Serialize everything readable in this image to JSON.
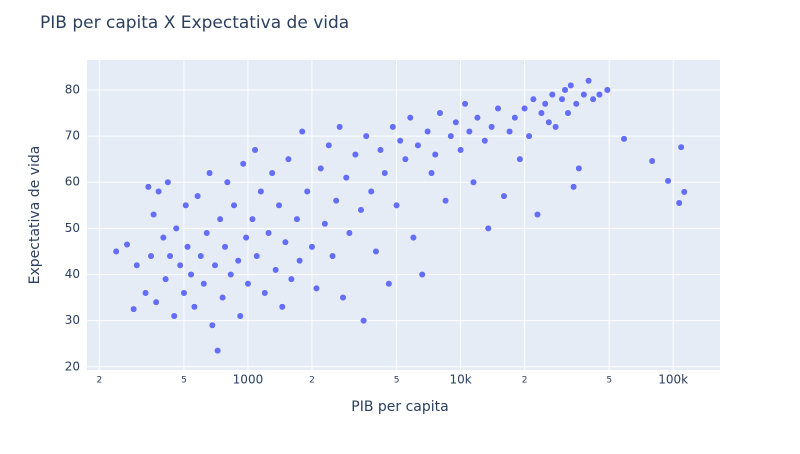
{
  "chart_data": {
    "type": "scatter",
    "title": "PIB per capita X Expectativa de vida",
    "x_label": "PIB per capita",
    "y_label": "Expectativa de vida",
    "x_log": true,
    "grid": true,
    "color": "#636efa",
    "xlim": [
      175,
      166000
    ],
    "ylim": [
      19.3,
      86.5
    ],
    "xticks": [
      {
        "value": 200,
        "label": "2"
      },
      {
        "value": 500,
        "label": "5"
      },
      1000,
      {
        "value": 2000,
        "label": "2"
      },
      {
        "value": 5000,
        "label": "5"
      },
      {
        "value": 10000,
        "label": "10k"
      },
      {
        "value": 20000,
        "label": "2"
      },
      {
        "value": 50000,
        "label": "5"
      },
      {
        "value": 100000,
        "label": "100k"
      }
    ],
    "yticks": [
      20,
      30,
      40,
      50,
      60,
      70,
      80
    ],
    "x": [
      240,
      270,
      290,
      300,
      330,
      340,
      350,
      360,
      370,
      380,
      400,
      410,
      420,
      430,
      450,
      460,
      480,
      500,
      510,
      520,
      540,
      560,
      580,
      600,
      620,
      640,
      660,
      680,
      700,
      720,
      740,
      760,
      780,
      800,
      830,
      860,
      900,
      920,
      950,
      980,
      1000,
      1050,
      1080,
      1100,
      1150,
      1200,
      1250,
      1300,
      1350,
      1400,
      1450,
      1500,
      1550,
      1600,
      1700,
      1750,
      1800,
      1900,
      2000,
      2100,
      2200,
      2300,
      2400,
      2500,
      2600,
      2700,
      2800,
      2900,
      3000,
      3200,
      3400,
      3500,
      3600,
      3800,
      4000,
      4200,
      4400,
      4600,
      4800,
      5000,
      5200,
      5500,
      5800,
      6000,
      6300,
      6600,
      7000,
      7300,
      7600,
      8000,
      8500,
      9000,
      9500,
      10000,
      10500,
      11000,
      11500,
      12000,
      13000,
      13500,
      14000,
      15000,
      16000,
      17000,
      18000,
      19000,
      20000,
      21000,
      22000,
      23000,
      24000,
      25000,
      26000,
      27000,
      28000,
      30000,
      31000,
      32000,
      33000,
      34000,
      35000,
      36000,
      38000,
      40000,
      42000,
      45000,
      49000,
      58700,
      79600,
      94600,
      106700,
      109000,
      112700
    ],
    "y": [
      45,
      46.5,
      32.5,
      42,
      36,
      59,
      44,
      53,
      34,
      58,
      48,
      39,
      60,
      44,
      31,
      50,
      42,
      36,
      55,
      46,
      40,
      33,
      57,
      44,
      38,
      49,
      62,
      29,
      42,
      23.5,
      52,
      35,
      46,
      60,
      40,
      55,
      43,
      31,
      64,
      48,
      38,
      52,
      67,
      44,
      58,
      36,
      49,
      62,
      41,
      55,
      33,
      47,
      65,
      39,
      52,
      43,
      71,
      58,
      46,
      37,
      63,
      51,
      68,
      44,
      56,
      72,
      35,
      61,
      49,
      66,
      54,
      30,
      70,
      58,
      45,
      67,
      62,
      38,
      72,
      55,
      69,
      65,
      74,
      48,
      68,
      40,
      71,
      62,
      66,
      75,
      56,
      70,
      73,
      67,
      77,
      71,
      60,
      74,
      69,
      50,
      72,
      76,
      57,
      71,
      74,
      65,
      76,
      70,
      78,
      53,
      75,
      77,
      73,
      79,
      72,
      78,
      80,
      75,
      81,
      59,
      77,
      63,
      79,
      82,
      78,
      79,
      80,
      69.4,
      64.6,
      60.3,
      55.5,
      67.6,
      57.9
    ]
  }
}
